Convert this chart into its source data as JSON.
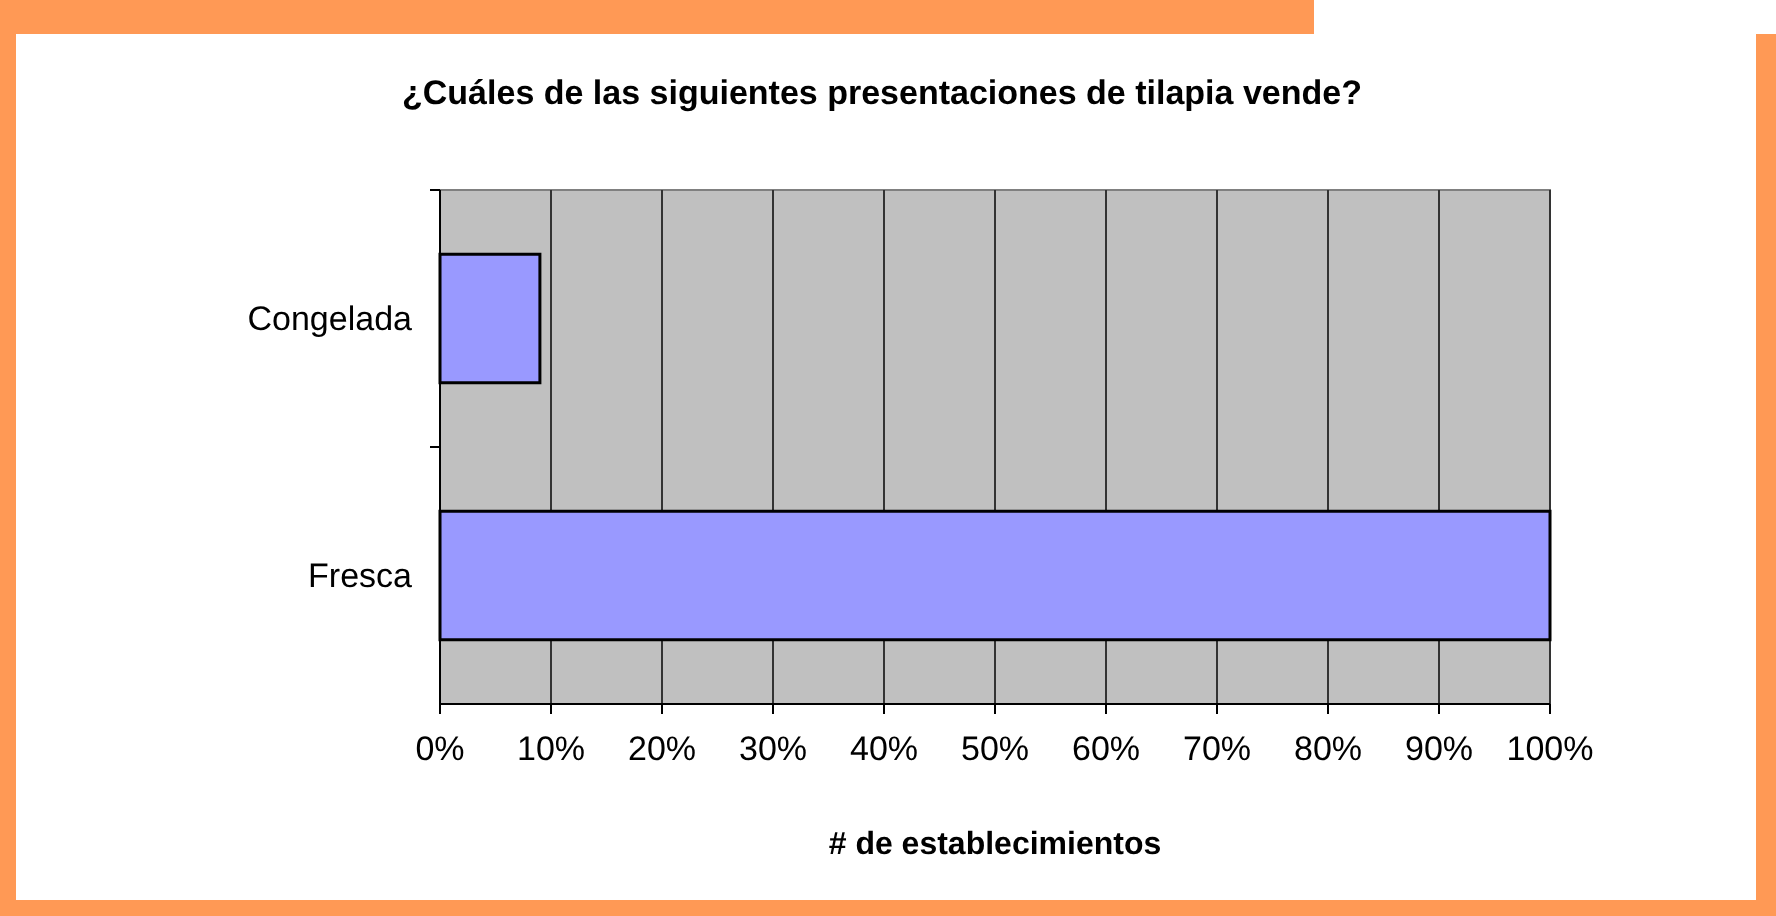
{
  "chart_data": {
    "type": "bar",
    "orientation": "horizontal",
    "title": "¿Cuáles de las siguientes presentaciones de tilapia vende?",
    "xlabel": "# de establecimientos",
    "categories": [
      "Congelada",
      "Fresca"
    ],
    "values": [
      9,
      100
    ],
    "color": "#9999ff",
    "xlim": [
      0,
      100
    ],
    "xticks": [
      {
        "value": 0,
        "label": "0%"
      },
      {
        "value": 10,
        "label": "10%"
      },
      {
        "value": 20,
        "label": "20%"
      },
      {
        "value": 30,
        "label": "30%"
      },
      {
        "value": 40,
        "label": "40%"
      },
      {
        "value": 50,
        "label": "50%"
      },
      {
        "value": 60,
        "label": "60%"
      },
      {
        "value": 70,
        "label": "70%"
      },
      {
        "value": 80,
        "label": "80%"
      },
      {
        "value": 90,
        "label": "90%"
      },
      {
        "value": 100,
        "label": "100%"
      }
    ],
    "grid": "x"
  }
}
